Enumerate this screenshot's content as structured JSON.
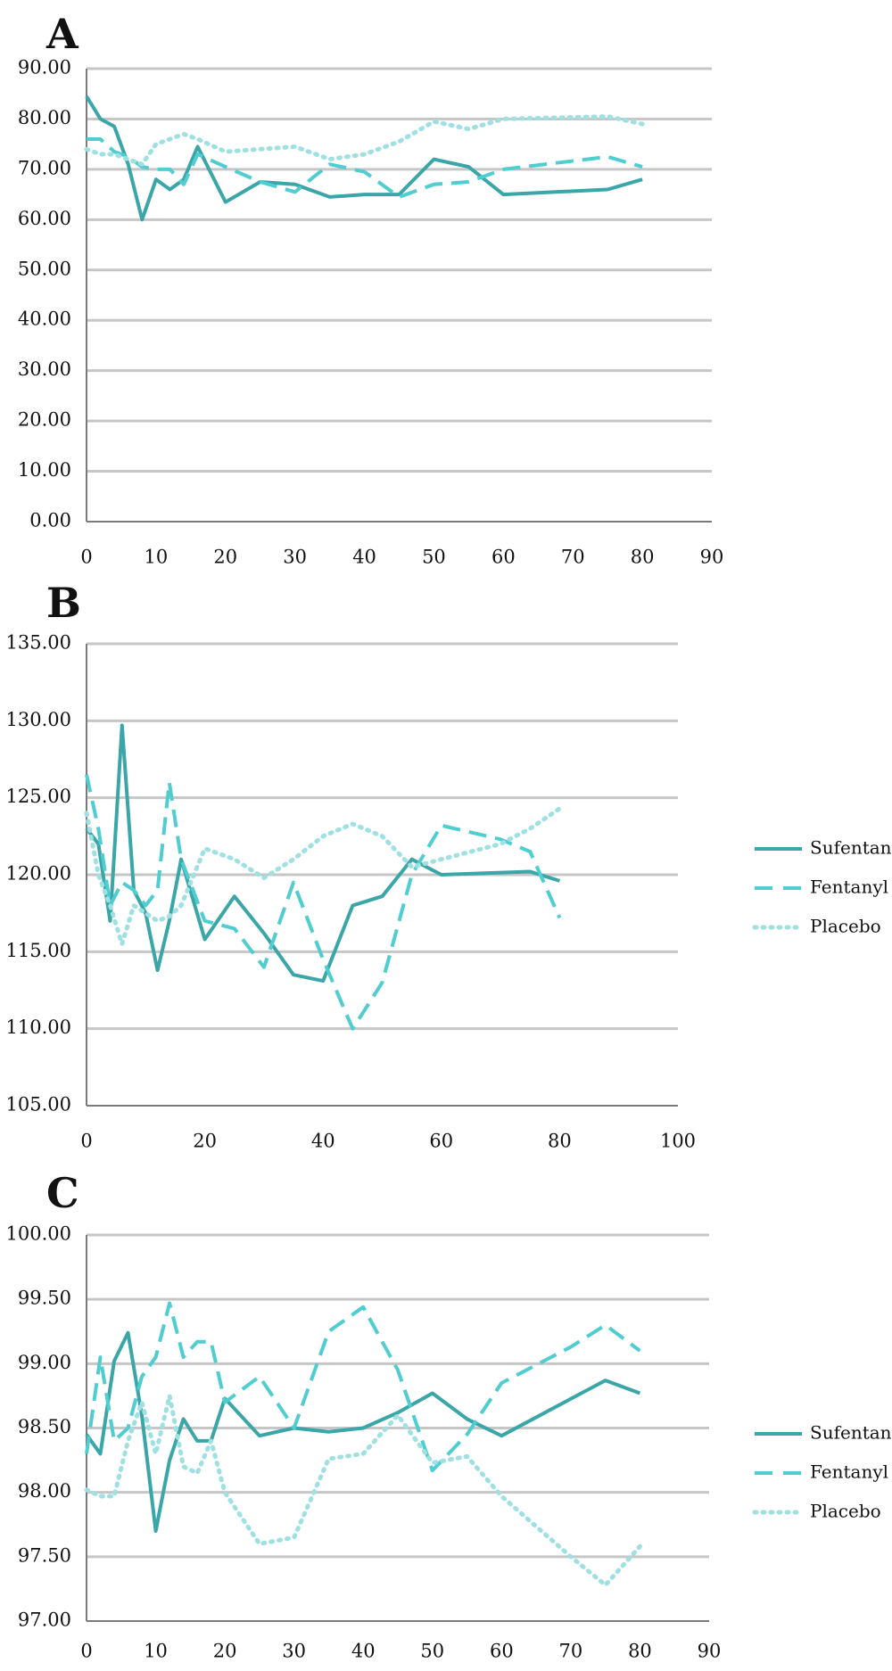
{
  "colors": {
    "Sufentanil": "#3aa6a8",
    "Fentanyl": "#4fcdd0",
    "Placebo": "#9fe0e2"
  },
  "chart_data": [
    {
      "type": "line",
      "panel": "A",
      "ylim": [
        0,
        90
      ],
      "yticks": [
        0,
        10,
        20,
        30,
        40,
        50,
        60,
        70,
        80,
        90
      ],
      "ytick_labels": [
        "0.00",
        "10.00",
        "20.00",
        "30.00",
        "40.00",
        "50.00",
        "60.00",
        "70.00",
        "80.00",
        "90.00"
      ],
      "xlim": [
        0,
        90
      ],
      "xticks": [
        0,
        10,
        20,
        30,
        40,
        50,
        60,
        70,
        80,
        90
      ],
      "xtick_labels": [
        "0",
        "10",
        "20",
        "30",
        "40",
        "50",
        "60",
        "70",
        "80",
        "90"
      ],
      "grid": true,
      "legend": false,
      "series": [
        {
          "key": "Sufentanil",
          "style": "solid",
          "x": [
            0,
            2,
            4,
            6,
            8,
            10,
            12,
            14,
            16,
            20,
            25,
            30,
            35,
            40,
            45,
            50,
            55,
            60,
            75,
            80
          ],
          "y": [
            84.5,
            80,
            78.5,
            71,
            60,
            68,
            66,
            68,
            74.5,
            63.5,
            67.5,
            67,
            64.5,
            65,
            65,
            72,
            70.5,
            65,
            66,
            68
          ]
        },
        {
          "key": "Fentanyl",
          "style": "dashed",
          "x": [
            0,
            2,
            4,
            6,
            8,
            10,
            12,
            14,
            16,
            20,
            25,
            30,
            35,
            40,
            45,
            50,
            55,
            60,
            75,
            80
          ],
          "y": [
            76,
            76,
            73.5,
            72.5,
            70.5,
            70,
            70,
            67,
            73,
            70.5,
            67.5,
            65.5,
            71,
            69.5,
            64.5,
            67,
            67.5,
            70,
            72.5,
            70.5
          ]
        },
        {
          "key": "Placebo",
          "style": "dotted",
          "x": [
            0,
            2,
            4,
            6,
            8,
            10,
            12,
            14,
            16,
            20,
            25,
            30,
            35,
            40,
            45,
            50,
            55,
            60,
            75,
            80
          ],
          "y": [
            74,
            73,
            73,
            72,
            71,
            75,
            76,
            77,
            76,
            73.5,
            74,
            74.5,
            72,
            73,
            75.5,
            79.5,
            78,
            80,
            80.5,
            79
          ]
        }
      ]
    },
    {
      "type": "line",
      "panel": "B",
      "ylim": [
        105,
        135
      ],
      "yticks": [
        105,
        110,
        115,
        120,
        125,
        130,
        135
      ],
      "ytick_labels": [
        "105.00",
        "110.00",
        "115.00",
        "120.00",
        "125.00",
        "130.00",
        "135.00"
      ],
      "xlim": [
        0,
        100
      ],
      "xticks": [
        0,
        20,
        40,
        60,
        80,
        100
      ],
      "xtick_labels": [
        "0",
        "20",
        "40",
        "60",
        "80",
        "100"
      ],
      "grid": true,
      "legend": true,
      "legend_position": "right",
      "series": [
        {
          "key": "Sufentanil",
          "name": "Sufentanil",
          "style": "solid",
          "x": [
            0,
            2,
            4,
            6,
            8,
            10,
            12,
            14,
            16,
            20,
            25,
            30,
            35,
            40,
            45,
            50,
            55,
            60,
            75,
            80
          ],
          "y": [
            123,
            122,
            117,
            129.7,
            119,
            117.5,
            113.8,
            117,
            121,
            115.8,
            118.6,
            116.2,
            113.5,
            113.1,
            118,
            118.6,
            121,
            120,
            120.2,
            119.6
          ]
        },
        {
          "key": "Fentanyl",
          "name": "Fentanyl",
          "style": "dashed",
          "x": [
            0,
            2,
            4,
            6,
            8,
            10,
            12,
            14,
            16,
            20,
            25,
            30,
            35,
            40,
            45,
            50,
            55,
            60,
            70,
            75,
            80
          ],
          "y": [
            126.5,
            123,
            118,
            119.5,
            119,
            118,
            119,
            126,
            121,
            117,
            116.5,
            114,
            119.5,
            114.5,
            110,
            113,
            120,
            123.2,
            122.3,
            121.5,
            117.2
          ]
        },
        {
          "key": "Placebo",
          "name": "Placebo",
          "style": "dotted",
          "x": [
            0,
            2,
            4,
            6,
            8,
            10,
            12,
            14,
            16,
            20,
            25,
            30,
            35,
            40,
            45,
            50,
            55,
            60,
            70,
            75,
            80
          ],
          "y": [
            124,
            120,
            118,
            115.5,
            118,
            117.5,
            117,
            117.3,
            118,
            121.7,
            121,
            119.8,
            121,
            122.5,
            123.3,
            122.5,
            120.5,
            121,
            122,
            123,
            124.3
          ]
        }
      ]
    },
    {
      "type": "line",
      "panel": "C",
      "ylim": [
        97,
        100
      ],
      "yticks": [
        97,
        97.5,
        98,
        98.5,
        99,
        99.5,
        100
      ],
      "ytick_labels": [
        "97.00",
        "97.50",
        "98.00",
        "98.50",
        "99.00",
        "99.50",
        "100.00"
      ],
      "xlim": [
        0,
        90
      ],
      "xticks": [
        0,
        10,
        20,
        30,
        40,
        50,
        60,
        70,
        80,
        90
      ],
      "xtick_labels": [
        "0",
        "10",
        "20",
        "30",
        "40",
        "50",
        "60",
        "70",
        "80",
        "90"
      ],
      "grid": true,
      "legend": true,
      "legend_position": "right",
      "series": [
        {
          "key": "Sufentanil",
          "name": "Sufentanil",
          "style": "solid",
          "x": [
            0,
            2,
            4,
            6,
            8,
            10,
            12,
            14,
            16,
            18,
            20,
            25,
            30,
            35,
            40,
            45,
            50,
            55,
            60,
            75,
            80
          ],
          "y": [
            98.45,
            98.3,
            99.02,
            99.24,
            98.6,
            97.7,
            98.25,
            98.57,
            98.4,
            98.4,
            98.73,
            98.44,
            98.5,
            98.47,
            98.5,
            98.62,
            98.77,
            98.57,
            98.44,
            98.87,
            98.77
          ]
        },
        {
          "key": "Fentanyl",
          "name": "Fentanyl",
          "style": "dashed",
          "x": [
            0,
            2,
            4,
            6,
            8,
            10,
            12,
            14,
            16,
            18,
            20,
            25,
            30,
            35,
            40,
            45,
            50,
            55,
            60,
            70,
            75,
            80
          ],
          "y": [
            98.3,
            99.05,
            98.4,
            98.5,
            98.9,
            99.05,
            99.47,
            99.05,
            99.17,
            99.17,
            98.7,
            98.9,
            98.5,
            99.25,
            99.44,
            98.95,
            98.17,
            98.45,
            98.85,
            99.13,
            99.3,
            99.1
          ]
        },
        {
          "key": "Placebo",
          "name": "Placebo",
          "style": "dotted",
          "x": [
            0,
            2,
            4,
            6,
            8,
            10,
            12,
            14,
            16,
            18,
            20,
            25,
            30,
            35,
            40,
            45,
            50,
            55,
            60,
            70,
            75,
            80
          ],
          "y": [
            98.02,
            97.97,
            97.97,
            98.4,
            98.7,
            98.3,
            98.75,
            98.2,
            98.15,
            98.4,
            98,
            97.6,
            97.65,
            98.26,
            98.3,
            98.6,
            98.23,
            98.28,
            97.97,
            97.5,
            97.28,
            97.58
          ]
        }
      ]
    }
  ]
}
